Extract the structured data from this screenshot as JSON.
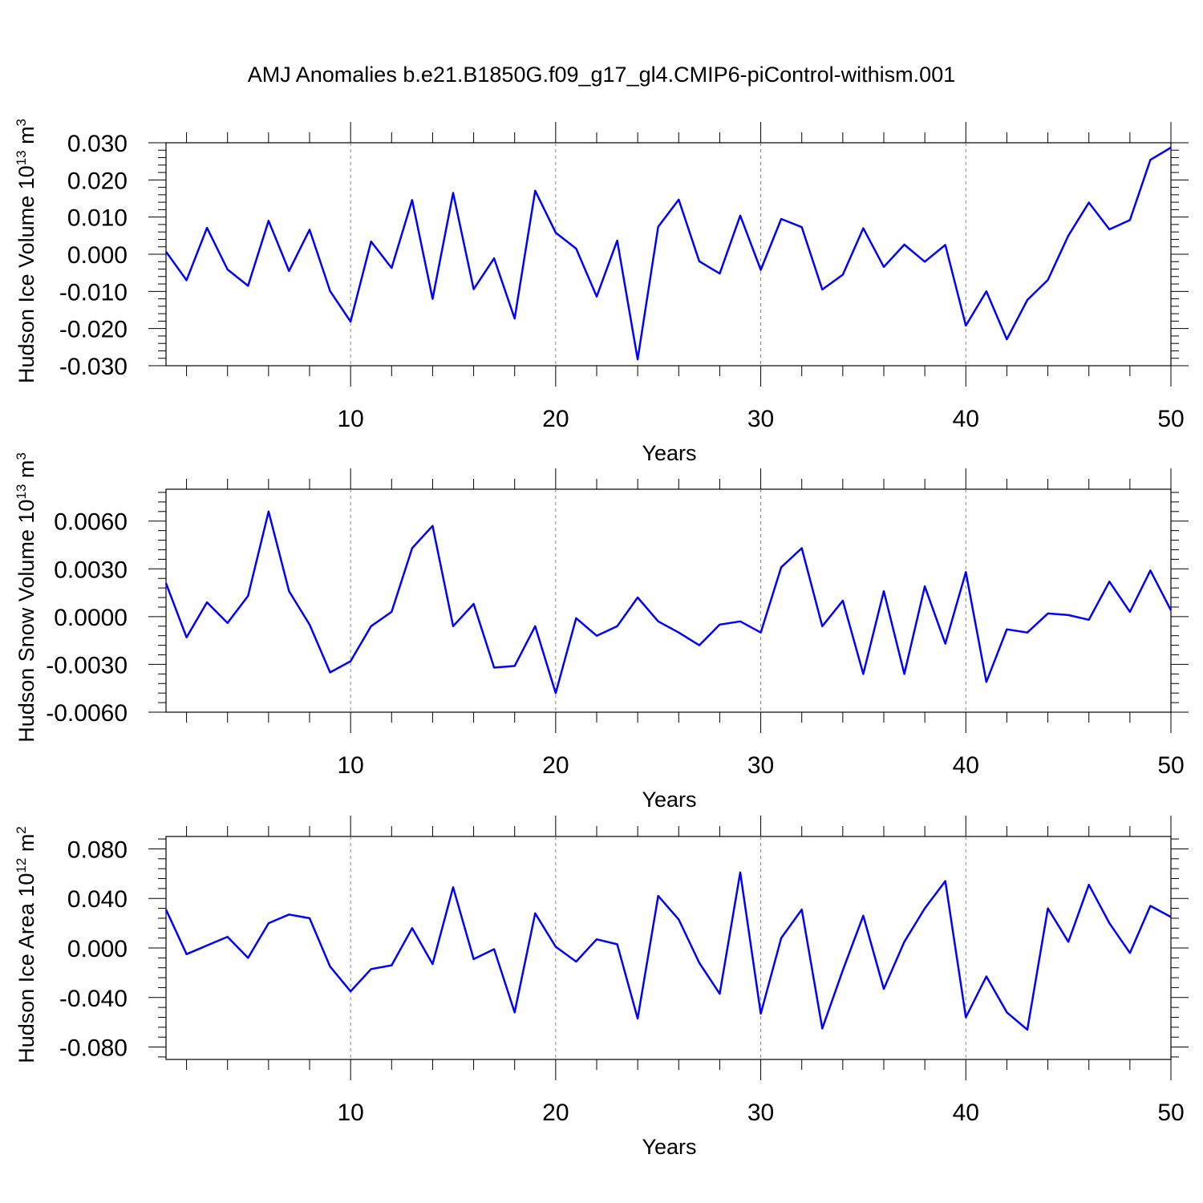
{
  "title": "AMJ Anomalies b.e21.B1850G.f09_g17_gl4.CMIP6-piControl-withism.001",
  "chart_data": [
    {
      "type": "line",
      "xlabel": "Years",
      "ylabel": "Hudson Ice Volume 10",
      "ylabel_sup": "13",
      "ylabel_unit": " m",
      "ylabel_unit_sup": "3",
      "xlim": [
        1,
        50
      ],
      "ylim": [
        -0.03,
        0.03
      ],
      "x_ticks": [
        10,
        20,
        30,
        40,
        50
      ],
      "y_ticks": [
        -0.03,
        -0.02,
        -0.01,
        0.0,
        0.01,
        0.02,
        0.03
      ],
      "y_tick_labels": [
        "-0.030",
        "-0.020",
        "-0.010",
        "0.000",
        "0.010",
        "0.020",
        "0.030"
      ],
      "y_minor_step": 0.002,
      "grid": "vertical dashed at 10,20,30,40",
      "color": "#0000ff",
      "x": [
        1,
        2,
        3,
        4,
        5,
        6,
        7,
        8,
        9,
        10,
        11,
        12,
        13,
        14,
        15,
        16,
        17,
        18,
        19,
        20,
        21,
        22,
        23,
        24,
        25,
        26,
        27,
        28,
        29,
        30,
        31,
        32,
        33,
        34,
        35,
        36,
        37,
        38,
        39,
        40,
        41,
        42,
        43,
        44,
        45,
        46,
        47,
        48,
        49,
        50
      ],
      "y": [
        0.0007,
        -0.007,
        0.0071,
        -0.0041,
        -0.0085,
        0.009,
        -0.0045,
        0.0066,
        -0.0099,
        -0.0181,
        0.0034,
        -0.0037,
        0.0146,
        -0.012,
        0.0165,
        -0.0094,
        -0.0011,
        -0.0173,
        0.0171,
        0.0058,
        0.0015,
        -0.0114,
        0.0037,
        -0.0283,
        0.0074,
        0.0147,
        -0.0019,
        -0.0052,
        0.0104,
        -0.0042,
        0.0095,
        0.0073,
        -0.0095,
        -0.0055,
        0.007,
        -0.0034,
        0.0026,
        -0.002,
        0.0025,
        -0.0192,
        -0.01,
        -0.0229,
        -0.0123,
        -0.0069,
        0.005,
        0.0139,
        0.0067,
        0.0092,
        0.0254,
        0.0287
      ]
    },
    {
      "type": "line",
      "xlabel": "Years",
      "ylabel": "Hudson Snow Volume 10",
      "ylabel_sup": "13",
      "ylabel_unit": " m",
      "ylabel_unit_sup": "3",
      "xlim": [
        1,
        50
      ],
      "ylim": [
        -0.006,
        0.008
      ],
      "x_ticks": [
        10,
        20,
        30,
        40,
        50
      ],
      "y_ticks": [
        -0.006,
        -0.003,
        0.0,
        0.003,
        0.006
      ],
      "y_tick_labels": [
        "-0.0060",
        "-0.0030",
        "0.0000",
        "0.0030",
        "0.0060"
      ],
      "y_minor_step": 0.0006,
      "grid": "vertical dashed at 10,20,30,40",
      "color": "#0000ff",
      "x": [
        1,
        2,
        3,
        4,
        5,
        6,
        7,
        8,
        9,
        10,
        11,
        12,
        13,
        14,
        15,
        16,
        17,
        18,
        19,
        20,
        21,
        22,
        23,
        24,
        25,
        26,
        27,
        28,
        29,
        30,
        31,
        32,
        33,
        34,
        35,
        36,
        37,
        38,
        39,
        40,
        41,
        42,
        43,
        44,
        45,
        46,
        47,
        48,
        49,
        50
      ],
      "y": [
        0.0021,
        -0.0013,
        0.0009,
        -0.0004,
        0.0013,
        0.0066,
        0.0016,
        -0.0005,
        -0.0035,
        -0.0028,
        -0.0006,
        0.0003,
        0.0043,
        0.0057,
        -0.0006,
        0.0008,
        -0.0032,
        -0.0031,
        -0.0006,
        -0.0048,
        -0.0001,
        -0.0012,
        -0.0006,
        0.0012,
        -0.0003,
        -0.001,
        -0.0018,
        -0.0005,
        -0.0003,
        -0.001,
        0.0031,
        0.0043,
        -0.0006,
        0.001,
        -0.0036,
        0.0016,
        -0.0036,
        0.0019,
        -0.0017,
        0.0028,
        -0.0041,
        -0.0008,
        -0.001,
        0.0002,
        0.0001,
        -0.0002,
        0.0022,
        0.0003,
        0.0029,
        0.0004
      ]
    },
    {
      "type": "line",
      "xlabel": "Years",
      "ylabel": "Hudson Ice Area 10",
      "ylabel_sup": "12",
      "ylabel_unit": " m",
      "ylabel_unit_sup": "2",
      "xlim": [
        1,
        50
      ],
      "ylim": [
        -0.09,
        0.09
      ],
      "x_ticks": [
        10,
        20,
        30,
        40,
        50
      ],
      "y_ticks": [
        -0.08,
        -0.04,
        0.0,
        0.04,
        0.08
      ],
      "y_tick_labels": [
        "-0.080",
        "-0.040",
        "0.000",
        "0.040",
        "0.080"
      ],
      "y_minor_step": 0.008,
      "grid": "vertical dashed at 10,20,30,40",
      "color": "#0000ff",
      "x": [
        1,
        2,
        3,
        4,
        5,
        6,
        7,
        8,
        9,
        10,
        11,
        12,
        13,
        14,
        15,
        16,
        17,
        18,
        19,
        20,
        21,
        22,
        23,
        24,
        25,
        26,
        27,
        28,
        29,
        30,
        31,
        32,
        33,
        34,
        35,
        36,
        37,
        38,
        39,
        40,
        41,
        42,
        43,
        44,
        45,
        46,
        47,
        48,
        49,
        50
      ],
      "y": [
        0.031,
        -0.005,
        0.002,
        0.009,
        -0.008,
        0.02,
        0.027,
        0.024,
        -0.015,
        -0.035,
        -0.017,
        -0.014,
        0.016,
        -0.013,
        0.049,
        -0.009,
        -0.001,
        -0.052,
        0.028,
        0.001,
        -0.011,
        0.007,
        0.003,
        -0.057,
        0.042,
        0.023,
        -0.012,
        -0.037,
        0.061,
        -0.053,
        0.008,
        0.031,
        -0.065,
        -0.018,
        0.026,
        -0.033,
        0.005,
        0.032,
        0.054,
        -0.056,
        -0.023,
        -0.052,
        -0.066,
        0.032,
        0.005,
        0.051,
        0.02,
        -0.004,
        0.034,
        0.025
      ]
    }
  ]
}
